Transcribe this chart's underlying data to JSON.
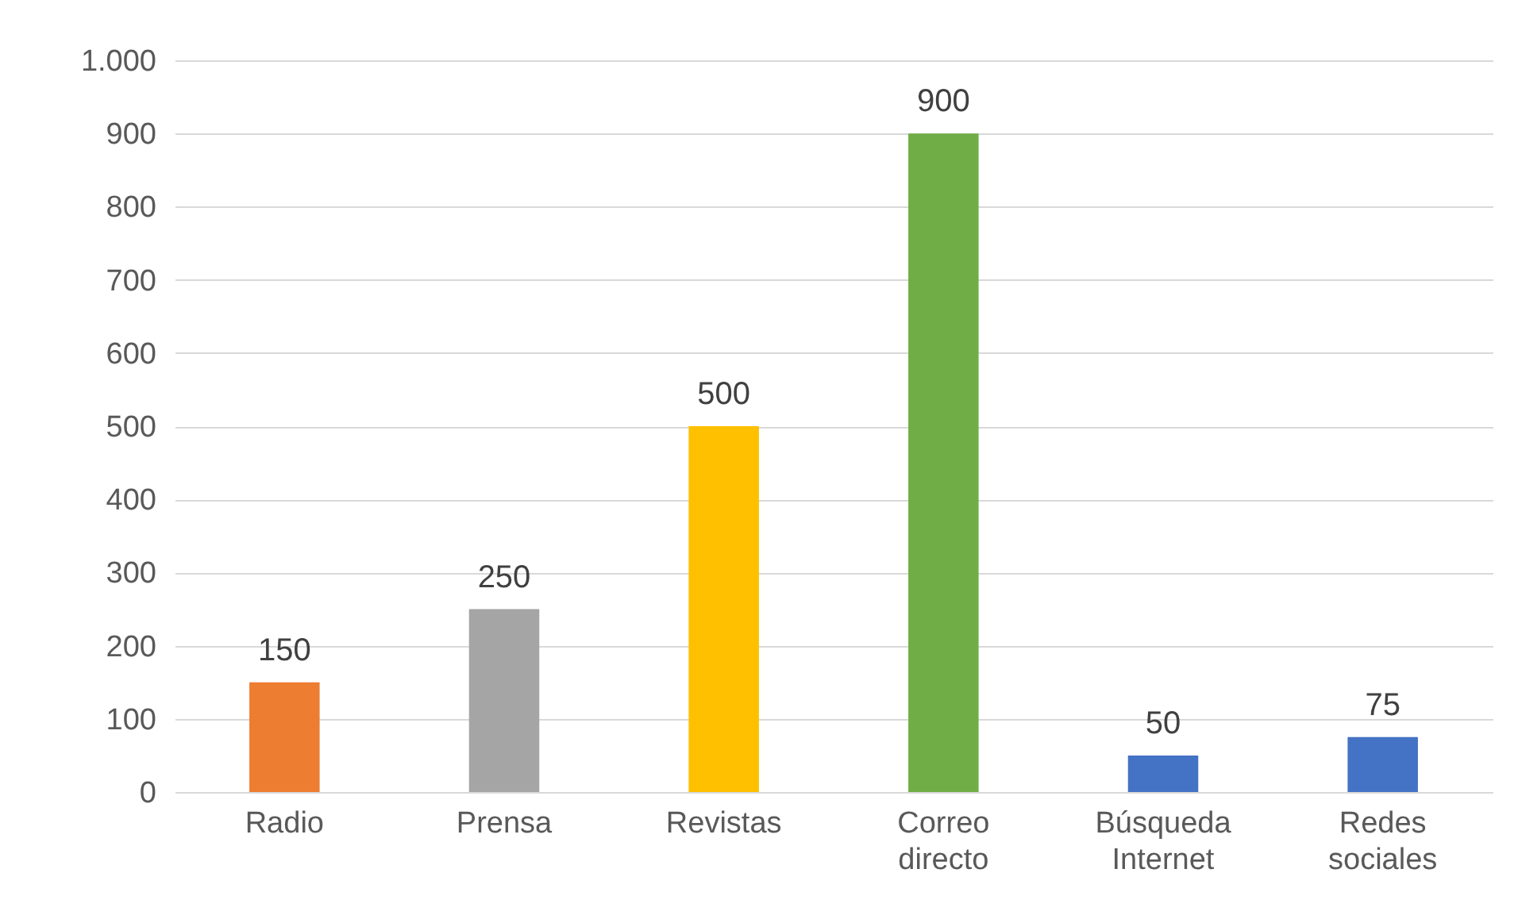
{
  "chart_data": {
    "type": "bar",
    "categories": [
      "Radio",
      "Prensa",
      "Revistas",
      "Correo directo",
      "Búsqueda Internet",
      "Redes sociales"
    ],
    "values": [
      150,
      250,
      500,
      900,
      50,
      75
    ],
    "colors": [
      "#ed7d31",
      "#a5a5a5",
      "#ffc000",
      "#70ad47",
      "#4472c4",
      "#4472c4"
    ],
    "ylim": [
      0,
      1000
    ],
    "yticks": [
      0,
      100,
      200,
      300,
      400,
      500,
      600,
      700,
      800,
      900,
      {
        "value": 1000,
        "label": "1.000"
      }
    ],
    "grid": "y",
    "data_labels": true
  }
}
